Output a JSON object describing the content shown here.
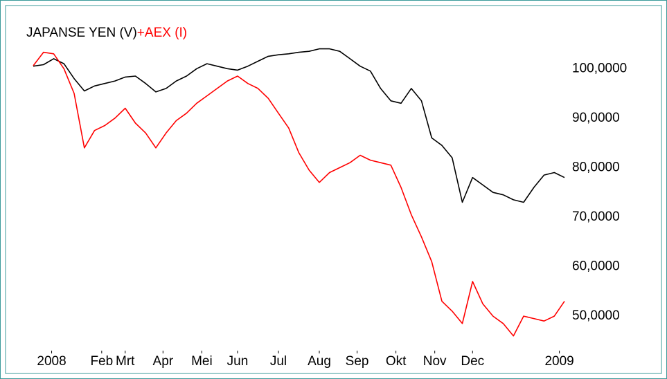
{
  "chart_data": {
    "type": "line",
    "series": [
      {
        "name": "JAPANSE YEN (V)",
        "color": "#000000",
        "values": [
          100.5,
          100.8,
          102,
          101,
          98,
          95.5,
          96.5,
          97,
          97.5,
          98.3,
          98.5,
          97,
          95.3,
          96,
          97.5,
          98.5,
          100,
          101,
          100.5,
          100,
          99.7,
          100.5,
          101.5,
          102.5,
          102.8,
          103,
          103.3,
          103.5,
          104,
          104,
          103.5,
          102,
          100.5,
          99.5,
          96,
          93.5,
          93,
          96,
          93.5,
          86,
          84.5,
          82,
          73,
          78,
          76.5,
          75,
          74.5,
          73.5,
          73,
          76,
          78.5,
          79,
          78
        ]
      },
      {
        "name": "+AEX (I)",
        "color": "#ff0000",
        "values": [
          100.6,
          103.3,
          103,
          100,
          95,
          84,
          87.5,
          88.5,
          90,
          92,
          89,
          87,
          84,
          87,
          89.5,
          91,
          93,
          94.5,
          96,
          97.5,
          98.5,
          97,
          96,
          94,
          91,
          88,
          83,
          79.5,
          77,
          79,
          80,
          81,
          82.5,
          81.5,
          81,
          80.5,
          76,
          70.5,
          66,
          61,
          53,
          51,
          48.5,
          57,
          52.5,
          50,
          48.5,
          46,
          50,
          49.5,
          49,
          50,
          53
        ]
      }
    ],
    "x": [
      0,
      1,
      2,
      3,
      4,
      5,
      6,
      7,
      8,
      9,
      10,
      11,
      12,
      13,
      14,
      15,
      16,
      17,
      18,
      19,
      20,
      21,
      22,
      23,
      24,
      25,
      26,
      27,
      28,
      29,
      30,
      31,
      32,
      33,
      34,
      35,
      36,
      37,
      38,
      39,
      40,
      41,
      42,
      43,
      44,
      45,
      46,
      47,
      48,
      49,
      50,
      51,
      52
    ],
    "xlim": [
      0,
      52
    ],
    "xticks": [
      {
        "value": 1.8,
        "label": "2008"
      },
      {
        "value": 6.7,
        "label": "Feb"
      },
      {
        "value": 9,
        "label": "Mrt"
      },
      {
        "value": 12.7,
        "label": "Apr"
      },
      {
        "value": 16.5,
        "label": "Mei"
      },
      {
        "value": 20,
        "label": "Jun"
      },
      {
        "value": 24,
        "label": "Jul"
      },
      {
        "value": 28,
        "label": "Aug"
      },
      {
        "value": 31.7,
        "label": "Sep"
      },
      {
        "value": 35.5,
        "label": "Okt"
      },
      {
        "value": 39.3,
        "label": "Nov"
      },
      {
        "value": 43,
        "label": "Dec"
      },
      {
        "value": 51.5,
        "label": "2009"
      }
    ],
    "ylim": [
      44,
      108
    ],
    "yticks": [
      {
        "value": 100,
        "label": "100,0000"
      },
      {
        "value": 90,
        "label": "90,0000"
      },
      {
        "value": 80,
        "label": "80,0000"
      },
      {
        "value": 70,
        "label": "70,0000"
      },
      {
        "value": 60,
        "label": "60,0000"
      },
      {
        "value": 50,
        "label": "50,0000"
      }
    ]
  }
}
